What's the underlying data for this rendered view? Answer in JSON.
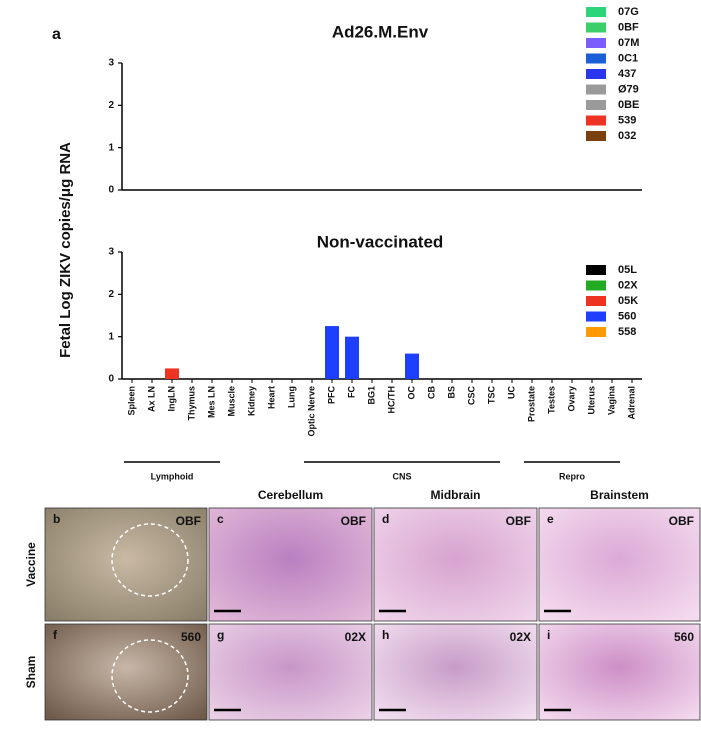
{
  "figure_label": "a",
  "chart_data": [
    {
      "type": "bar",
      "title": "Ad26.M.Env",
      "ylabel": "Fetal Log ZIKV copies/μg RNA",
      "ylim": [
        0,
        3
      ],
      "yticks": [
        0,
        1,
        2,
        3
      ],
      "legend": "upper right",
      "series": [
        {
          "name": "07G",
          "color": "#2ed47a",
          "values": [
            0,
            0,
            0,
            0,
            0,
            0,
            0,
            0,
            0,
            0,
            0,
            0,
            0,
            0,
            0,
            0,
            0,
            0,
            0,
            0,
            0,
            0,
            0,
            0,
            0,
            0
          ]
        },
        {
          "name": "0BF",
          "color": "#3ccf68",
          "values": [
            0,
            0,
            0,
            0,
            0,
            0,
            0,
            0,
            0,
            0,
            0,
            0,
            0,
            0,
            0,
            0,
            0,
            0,
            0,
            0,
            0,
            0,
            0,
            0,
            0,
            0
          ]
        },
        {
          "name": "07M",
          "color": "#7b5cff",
          "values": [
            0,
            0,
            0,
            0,
            0,
            0,
            0,
            0,
            0,
            0,
            0,
            0,
            0,
            0,
            0,
            0,
            0,
            0,
            0,
            0,
            0,
            0,
            0,
            0,
            0,
            0
          ]
        },
        {
          "name": "0C1",
          "color": "#1a5fd6",
          "values": [
            0,
            0,
            0,
            0,
            0,
            0,
            0,
            0,
            0,
            0,
            0,
            0,
            0,
            0,
            0,
            0,
            0,
            0,
            0,
            0,
            0,
            0,
            0,
            0,
            0,
            0
          ]
        },
        {
          "name": "437",
          "color": "#2a36ee",
          "values": [
            0,
            0,
            0,
            0,
            0,
            0,
            0,
            0,
            0,
            0,
            0,
            0,
            0,
            0,
            0,
            0,
            0,
            0,
            0,
            0,
            0,
            0,
            0,
            0,
            0,
            0
          ]
        },
        {
          "name": "Ø79",
          "color": "#9a9a9a",
          "values": [
            0,
            0,
            0,
            0,
            0,
            0,
            0,
            0,
            0,
            0,
            0,
            0,
            0,
            0,
            0,
            0,
            0,
            0,
            0,
            0,
            0,
            0,
            0,
            0,
            0,
            0
          ]
        },
        {
          "name": "0BE",
          "color": "#9a9a9a",
          "values": [
            0,
            0,
            0,
            0,
            0,
            0,
            0,
            0,
            0,
            0,
            0,
            0,
            0,
            0,
            0,
            0,
            0,
            0,
            0,
            0,
            0,
            0,
            0,
            0,
            0,
            0
          ]
        },
        {
          "name": "539",
          "color": "#ee3322",
          "values": [
            0,
            0,
            0,
            0,
            0,
            0,
            0,
            0,
            0,
            0,
            0,
            0,
            0,
            0,
            0,
            0,
            0,
            0,
            0,
            0,
            0,
            0,
            0,
            0,
            0,
            0
          ]
        },
        {
          "name": "032",
          "color": "#7a4010",
          "values": [
            0,
            0,
            0,
            0,
            0,
            0,
            0,
            0,
            0,
            0,
            0,
            0,
            0,
            0,
            0,
            0,
            0,
            0,
            0,
            0,
            0,
            0,
            0,
            0,
            0,
            0
          ]
        }
      ]
    },
    {
      "type": "bar",
      "title": "Non-vaccinated",
      "categories": [
        "Spleen",
        "Ax LN",
        "IngLN",
        "Thymus",
        "Mes LN",
        "Muscle",
        "Kidney",
        "Heart",
        "Lung",
        "Optic Nerve",
        "PFC",
        "FC",
        "BG1",
        "HC/TH",
        "OC",
        "CB",
        "BS",
        "CSC",
        "TSC",
        "UC",
        "Prostate",
        "Testes",
        "Ovary",
        "Uterus",
        "Vagina",
        "Adrenal"
      ],
      "ylim": [
        0,
        3
      ],
      "yticks": [
        0,
        1,
        2,
        3
      ],
      "legend": "upper right",
      "groups": [
        "Lymphoid",
        "CNS",
        "Repro"
      ],
      "series": [
        {
          "name": "05L",
          "color": "#000000",
          "values": [
            0,
            0,
            0,
            0,
            0,
            0,
            0,
            0,
            0,
            0,
            0,
            0,
            0,
            0,
            0,
            0,
            0,
            0,
            0,
            0,
            0,
            0,
            0,
            0,
            0,
            0
          ]
        },
        {
          "name": "02X",
          "color": "#22aa22",
          "values": [
            0,
            0,
            0,
            0,
            0,
            0,
            0,
            0,
            0,
            0,
            0,
            0,
            0,
            0,
            0,
            0,
            0,
            0,
            0,
            0,
            0,
            0,
            0,
            0,
            0,
            0
          ]
        },
        {
          "name": "05K",
          "color": "#ee3322",
          "values": [
            0,
            0,
            0.25,
            0,
            0,
            0,
            0,
            0,
            0,
            0,
            0,
            0,
            0,
            0,
            0,
            0,
            0,
            0,
            0,
            0,
            0,
            0,
            0,
            0,
            0,
            0
          ]
        },
        {
          "name": "560",
          "color": "#1f3fff",
          "values": [
            0,
            0,
            0,
            0,
            0,
            0,
            0,
            0,
            0,
            0,
            1.25,
            1,
            0,
            0,
            0.6,
            0,
            0,
            0,
            0,
            0,
            0,
            0,
            0,
            0,
            0,
            0
          ]
        },
        {
          "name": "558",
          "color": "#ff9900",
          "values": [
            0,
            0,
            0,
            0,
            0,
            0,
            0,
            0,
            0,
            0,
            0,
            0,
            0,
            0,
            0,
            0,
            0,
            0,
            0,
            0,
            0,
            0,
            0,
            0,
            0,
            0
          ]
        }
      ]
    }
  ],
  "panels": {
    "column_headers": [
      "Cerebellum",
      "Midbrain",
      "Brainstem"
    ],
    "row_labels": [
      "Vaccine",
      "Sham"
    ],
    "images": [
      {
        "letter": "b",
        "tag": "OBF"
      },
      {
        "letter": "c",
        "tag": "OBF"
      },
      {
        "letter": "d",
        "tag": "OBF"
      },
      {
        "letter": "e",
        "tag": "OBF"
      },
      {
        "letter": "f",
        "tag": "560"
      },
      {
        "letter": "g",
        "tag": "02X"
      },
      {
        "letter": "h",
        "tag": "02X"
      },
      {
        "letter": "i",
        "tag": "560"
      }
    ]
  }
}
